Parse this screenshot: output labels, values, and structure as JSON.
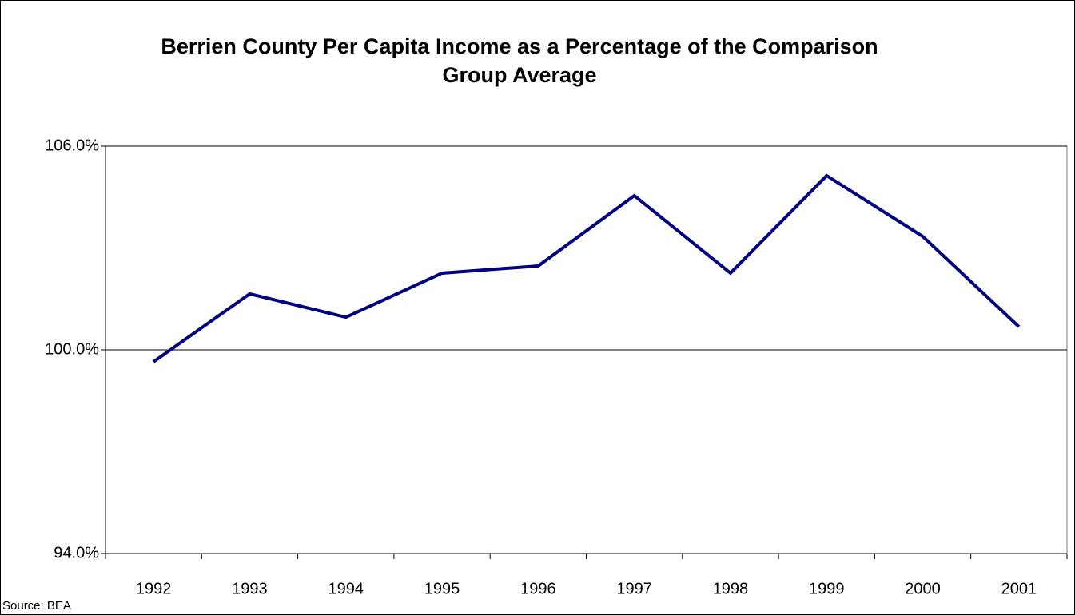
{
  "chart_data": {
    "type": "line",
    "title": "Berrien County Per Capita Income as a Percentage of the Comparison Group Average",
    "categories": [
      "1992",
      "1993",
      "1994",
      "1995",
      "1996",
      "1997",
      "1998",
      "1999",
      "2000",
      "2001"
    ],
    "values": [
      99.65,
      101.65,
      100.96,
      102.26,
      102.47,
      104.54,
      102.26,
      105.13,
      103.34,
      100.68
    ],
    "color": "#000080",
    "ylim": [
      94,
      106
    ],
    "yticks": [
      {
        "value": 94,
        "label": "94.0%"
      },
      {
        "value": 100,
        "label": "100.0%"
      },
      {
        "value": 106,
        "label": "106.0%"
      }
    ],
    "grid": true,
    "source": "Source: BEA"
  }
}
